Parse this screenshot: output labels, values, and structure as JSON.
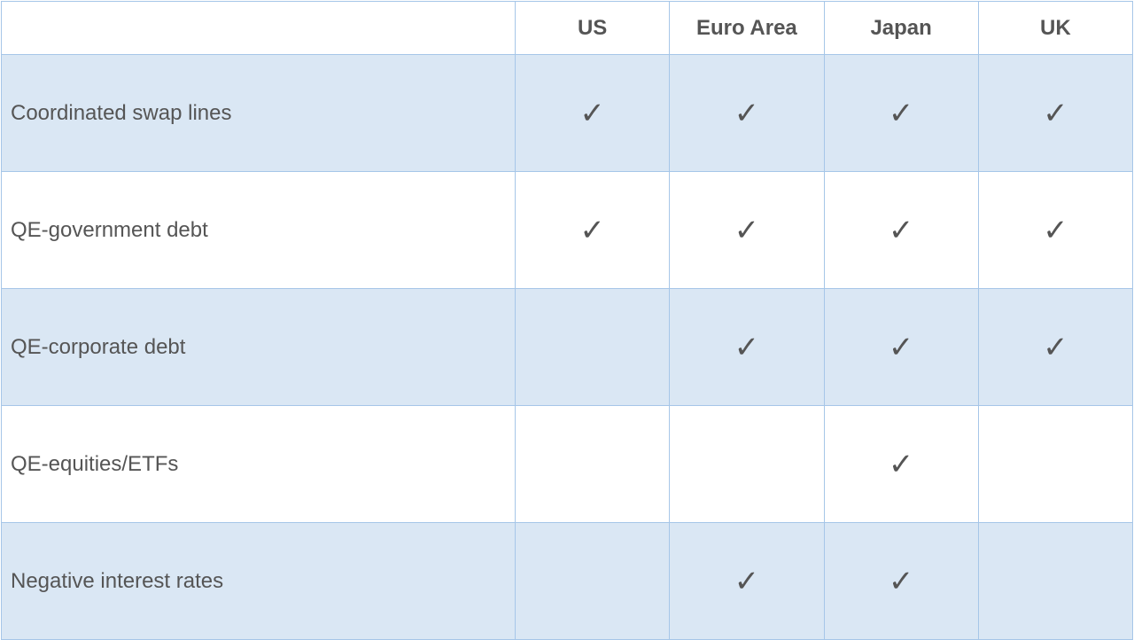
{
  "table": {
    "type": "table",
    "border_color": "#a6c6e8",
    "alt_row_bg": "#dae7f4",
    "plain_row_bg": "#ffffff",
    "header_text_color": "#555555",
    "cell_text_color": "#555555",
    "header_fontsize": 24,
    "rowlabel_fontsize": 24,
    "check_fontsize": 34,
    "check_glyph": "✓",
    "columns": [
      "US",
      "Euro Area",
      "Japan",
      "UK"
    ],
    "rows": [
      {
        "label": "Coordinated swap lines",
        "values": [
          true,
          true,
          true,
          true
        ]
      },
      {
        "label": "QE-government debt",
        "values": [
          true,
          true,
          true,
          true
        ]
      },
      {
        "label": "QE-corporate debt",
        "values": [
          false,
          true,
          true,
          true
        ]
      },
      {
        "label": "QE-equities/ETFs",
        "values": [
          false,
          false,
          true,
          false
        ]
      },
      {
        "label": "Negative interest rates",
        "values": [
          false,
          true,
          true,
          false
        ]
      }
    ]
  }
}
